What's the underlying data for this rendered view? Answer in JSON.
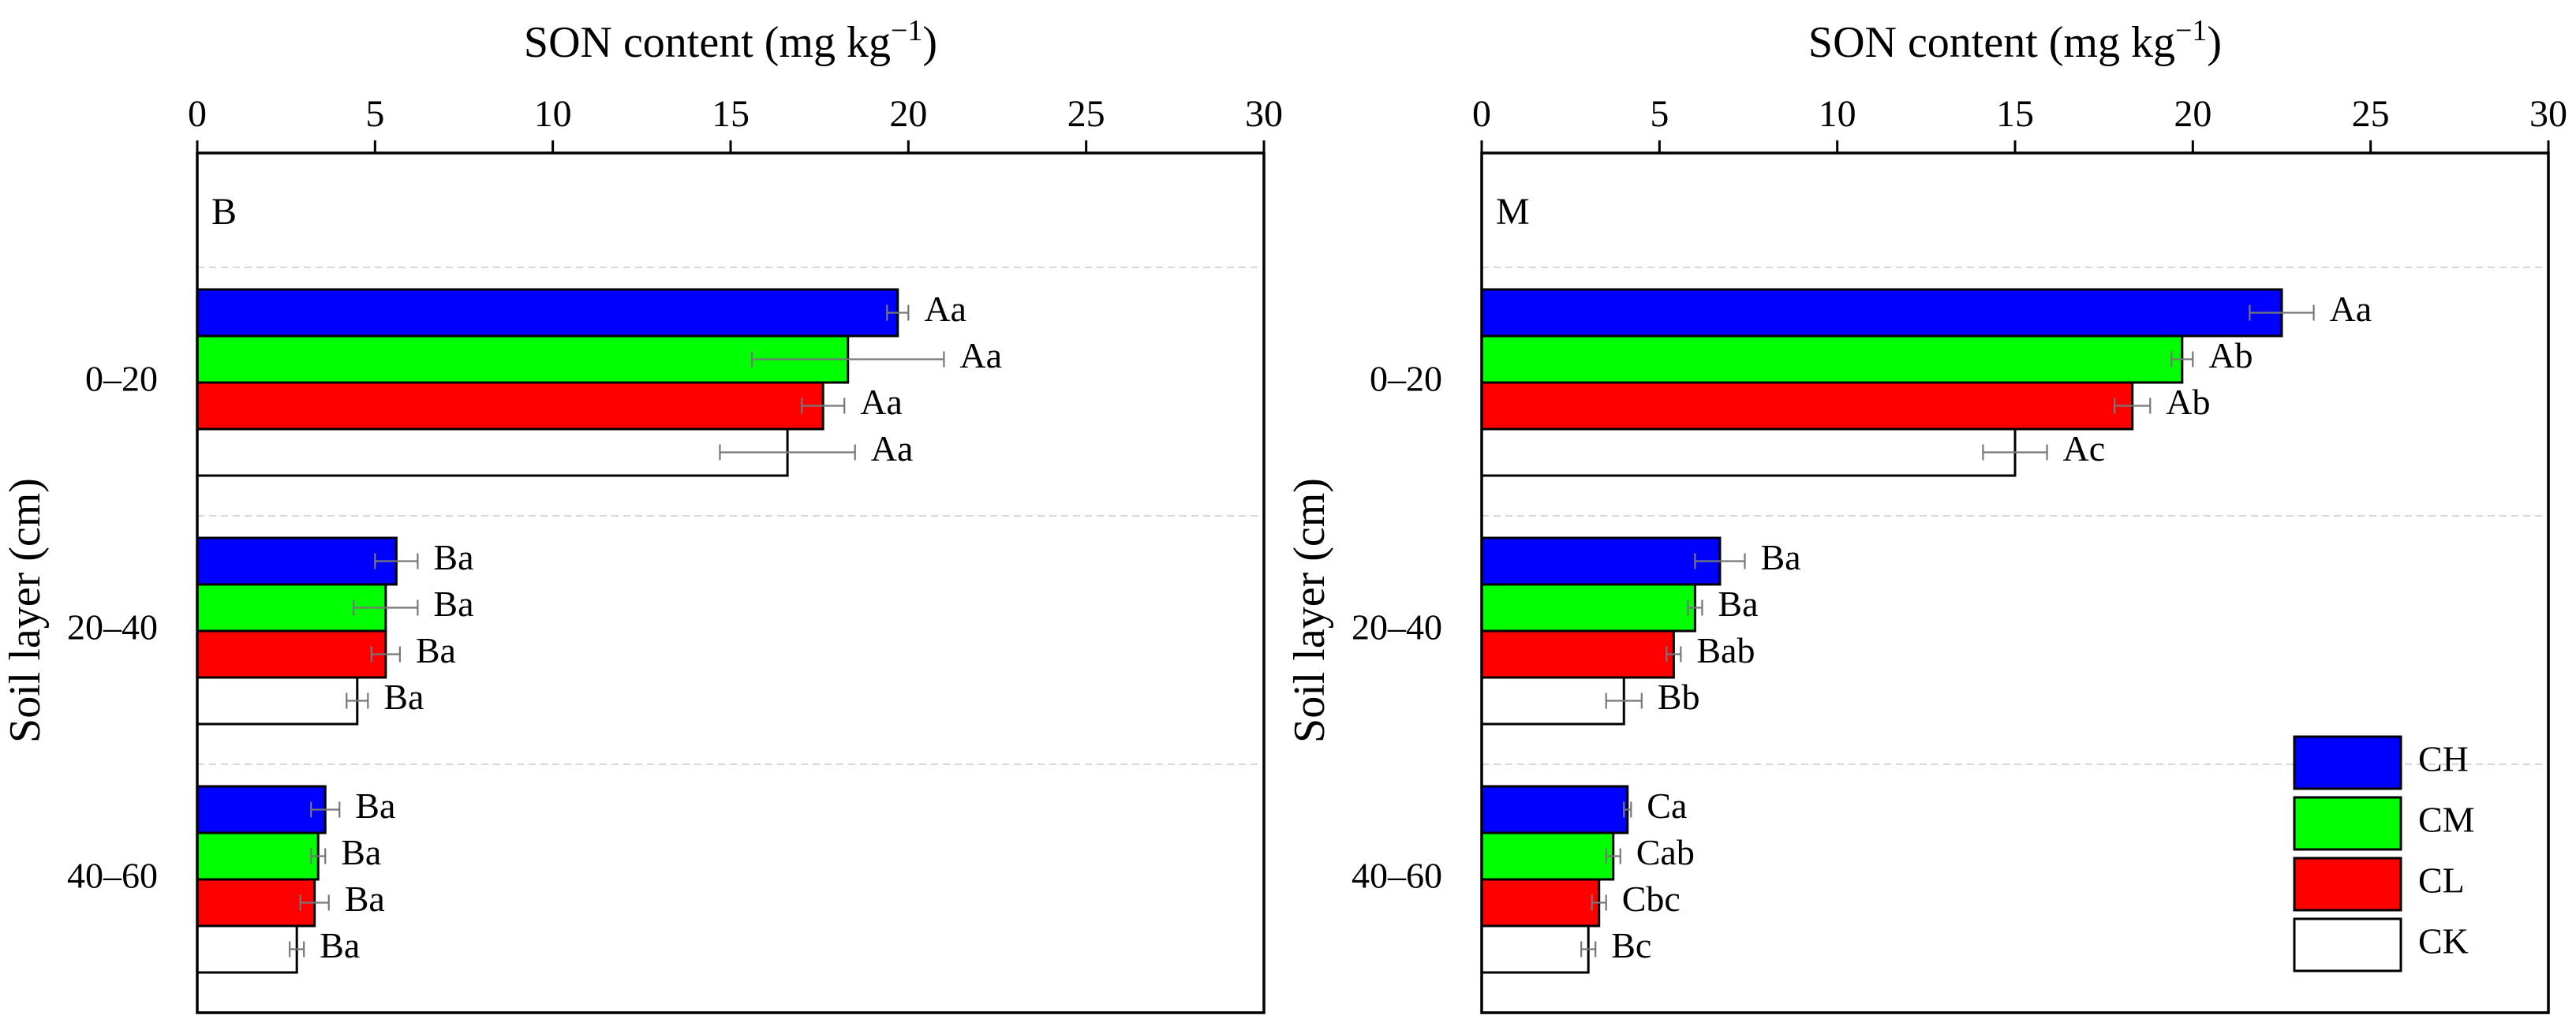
{
  "chart_data": [
    {
      "type": "bar",
      "orientation": "horizontal",
      "panel_label": "B",
      "xlabel": "SON content (mg kg",
      "xlabel_sup": "−1",
      "xlabel_close": ")",
      "ylabel": "Soil layer (cm)",
      "xlim": [
        0,
        30
      ],
      "x_ticks": [
        "0",
        "5",
        "10",
        "15",
        "20",
        "25",
        "30"
      ],
      "grid": "dashed-horizontal",
      "categories": [
        "0–20",
        "20–40",
        "40–60"
      ],
      "series": [
        {
          "name": "CH",
          "color": "#0000ff",
          "values": [
            19.7,
            5.6,
            3.6
          ],
          "errors": [
            0.3,
            0.6,
            0.4
          ],
          "labels": [
            "Aa",
            "Ba",
            "Ba"
          ]
        },
        {
          "name": "CM",
          "color": "#00ff00",
          "values": [
            18.3,
            5.3,
            3.4
          ],
          "errors": [
            2.7,
            0.9,
            0.2
          ],
          "labels": [
            "Aa",
            "Ba",
            "Ba"
          ]
        },
        {
          "name": "CL",
          "color": "#ff0000",
          "values": [
            17.6,
            5.3,
            3.3
          ],
          "errors": [
            0.6,
            0.4,
            0.4
          ],
          "labels": [
            "Aa",
            "Ba",
            "Ba"
          ]
        },
        {
          "name": "CK",
          "color": "#ffffff",
          "values": [
            16.6,
            4.5,
            2.8
          ],
          "errors": [
            1.9,
            0.3,
            0.2
          ],
          "labels": [
            "Aa",
            "Ba",
            "Ba"
          ]
        }
      ]
    },
    {
      "type": "bar",
      "orientation": "horizontal",
      "panel_label": "M",
      "xlabel": "SON content (mg kg",
      "xlabel_sup": "−1",
      "xlabel_close": ")",
      "ylabel": "Soil layer (cm)",
      "xlim": [
        0,
        30
      ],
      "x_ticks": [
        "0",
        "5",
        "10",
        "15",
        "20",
        "25",
        "30"
      ],
      "grid": "dashed-horizontal",
      "legend": "bottom-right",
      "categories": [
        "0–20",
        "20–40",
        "40–60"
      ],
      "series": [
        {
          "name": "CH",
          "color": "#0000ff",
          "values": [
            22.5,
            6.7,
            4.1
          ],
          "errors": [
            0.9,
            0.7,
            0.1
          ],
          "labels": [
            "Aa",
            "Ba",
            "Ca"
          ]
        },
        {
          "name": "CM",
          "color": "#00ff00",
          "values": [
            19.7,
            6.0,
            3.7
          ],
          "errors": [
            0.3,
            0.2,
            0.2
          ],
          "labels": [
            "Ab",
            "Ba",
            "Cab"
          ]
        },
        {
          "name": "CL",
          "color": "#ff0000",
          "values": [
            18.3,
            5.4,
            3.3
          ],
          "errors": [
            0.5,
            0.2,
            0.2
          ],
          "labels": [
            "Ab",
            "Bab",
            "Cbc"
          ]
        },
        {
          "name": "CK",
          "color": "#ffffff",
          "values": [
            15.0,
            4.0,
            3.0
          ],
          "errors": [
            0.9,
            0.5,
            0.2
          ],
          "labels": [
            "Ac",
            "Bb",
            "Bc"
          ]
        }
      ]
    }
  ]
}
